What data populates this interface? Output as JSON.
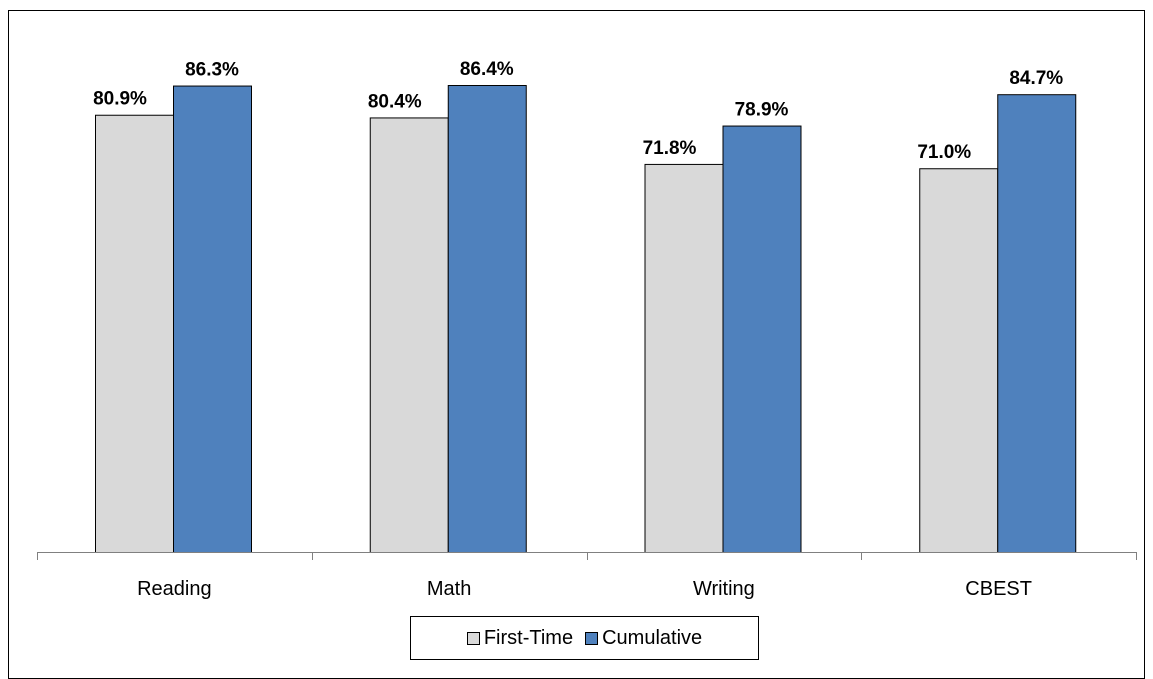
{
  "heading_fragment": "",
  "chart_data": {
    "type": "bar",
    "categories": [
      "Reading",
      "Math",
      "Writing",
      "CBEST"
    ],
    "series": [
      {
        "name": "First-Time",
        "values": [
          80.9,
          80.4,
          71.8,
          71.0
        ],
        "labels": [
          "80.9%",
          "80.4%",
          "71.8%",
          "71.0%"
        ],
        "color": "#d9d9d9"
      },
      {
        "name": "Cumulative",
        "values": [
          86.3,
          86.4,
          78.9,
          84.7
        ],
        "labels": [
          "86.3%",
          "86.4%",
          "78.9%",
          "84.7%"
        ],
        "color": "#4f81bd"
      }
    ],
    "ylim": [
      0,
      100
    ],
    "grid": false,
    "legend_position": "bottom",
    "xlabel": "",
    "ylabel": ""
  }
}
